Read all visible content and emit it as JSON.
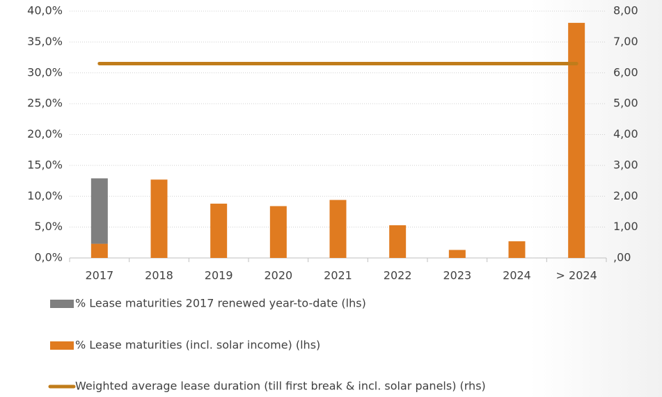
{
  "chart_data": {
    "type": "bar",
    "categories": [
      "2017",
      "2018",
      "2019",
      "2020",
      "2021",
      "2022",
      "2023",
      "2024",
      "> 2024"
    ],
    "series": [
      {
        "name": "% Lease maturities 2017 renewed year-to-date (lhs)",
        "type": "bar",
        "color": "#7f7f7f",
        "values": [
          10.6,
          null,
          null,
          null,
          null,
          null,
          null,
          null,
          null
        ]
      },
      {
        "name": "% Lease maturities (incl. solar income) (lhs)",
        "type": "bar",
        "color": "#e07b20",
        "values": [
          2.3,
          12.7,
          8.8,
          8.4,
          9.4,
          5.3,
          1.3,
          2.7,
          38.1
        ]
      },
      {
        "name": "Weighted average lease duration (till first break & incl. solar panels) (rhs)",
        "type": "line",
        "axis": "y2",
        "color": "#c07c1a",
        "values": [
          6.3,
          6.3,
          6.3,
          6.3,
          6.3,
          6.3,
          6.3,
          6.3,
          6.3
        ]
      }
    ],
    "ylim": [
      0,
      40
    ],
    "yticks": [
      {
        "value": 0,
        "label": "0,0%"
      },
      {
        "value": 5,
        "label": "5,0%"
      },
      {
        "value": 10,
        "label": "10,0%"
      },
      {
        "value": 15,
        "label": "15,0%"
      },
      {
        "value": 20,
        "label": "20,0%"
      },
      {
        "value": 25,
        "label": "25,0%"
      },
      {
        "value": 30,
        "label": "30,0%"
      },
      {
        "value": 35,
        "label": "35,0%"
      },
      {
        "value": 40,
        "label": "40,0%"
      }
    ],
    "y2lim": [
      0,
      8
    ],
    "y2ticks": [
      {
        "value": 0,
        "label": ",00"
      },
      {
        "value": 1,
        "label": "1,00"
      },
      {
        "value": 2,
        "label": "2,00"
      },
      {
        "value": 3,
        "label": "3,00"
      },
      {
        "value": 4,
        "label": "4,00"
      },
      {
        "value": 5,
        "label": "5,00"
      },
      {
        "value": 6,
        "label": "6,00"
      },
      {
        "value": 7,
        "label": "7,00"
      },
      {
        "value": 8,
        "label": "8,00"
      }
    ],
    "grid": true
  }
}
